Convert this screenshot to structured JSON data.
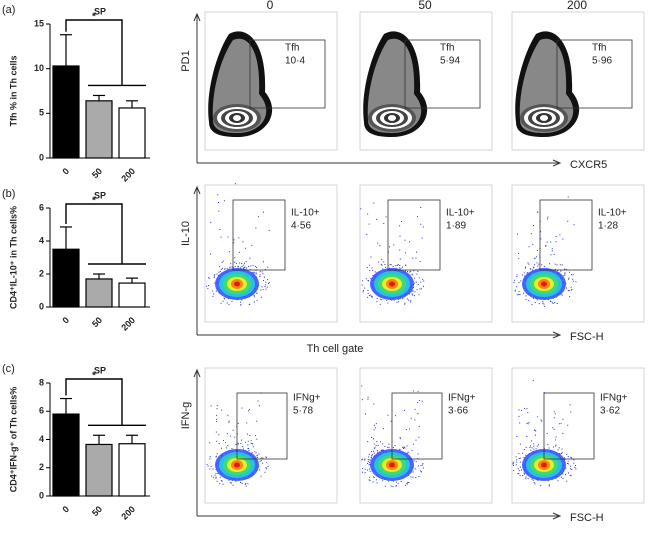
{
  "chart_data": [
    {
      "type": "bar",
      "panel_label": "(a)",
      "title": "SP",
      "ylabel": "Tfh % in Th cells",
      "categories": [
        "0",
        "50",
        "200"
      ],
      "values": [
        10.3,
        6.4,
        5.6
      ],
      "errors": [
        3.5,
        0.6,
        0.8
      ],
      "colors": [
        "#000000",
        "#aaaaaa",
        "#ffffff"
      ],
      "ylim": [
        0,
        15
      ],
      "yticks": [
        0,
        5,
        10,
        15
      ],
      "annotation": "*"
    },
    {
      "type": "bar",
      "panel_label": "(b)",
      "title": "SP",
      "ylabel": "CD4⁺IL-10⁺ in Th cells%",
      "categories": [
        "0",
        "50",
        "200"
      ],
      "values": [
        3.5,
        1.7,
        1.45
      ],
      "errors": [
        1.35,
        0.3,
        0.3
      ],
      "colors": [
        "#000000",
        "#aaaaaa",
        "#ffffff"
      ],
      "ylim": [
        0,
        6
      ],
      "yticks": [
        0,
        2,
        4,
        6
      ],
      "annotation": "*"
    },
    {
      "type": "bar",
      "panel_label": "(c)",
      "title": "SP",
      "ylabel": "CD4⁺IFN-g⁺ of Th cells%",
      "categories": [
        "0",
        "50",
        "200"
      ],
      "values": [
        5.8,
        3.65,
        3.7
      ],
      "errors": [
        1.1,
        0.65,
        0.6
      ],
      "colors": [
        "#000000",
        "#aaaaaa",
        "#ffffff"
      ],
      "ylim": [
        0,
        8
      ],
      "yticks": [
        0,
        2,
        4,
        6,
        8
      ],
      "annotation": "*"
    }
  ],
  "flow": {
    "columns": [
      "0",
      "50",
      "200"
    ],
    "rows": [
      {
        "y_label": "PD1",
        "x_label": "CXCR5",
        "gates": [
          {
            "label": "Tfh",
            "value": "10·4"
          },
          {
            "label": "Tfh",
            "value": "5·94"
          },
          {
            "label": "Tfh",
            "value": "5·96"
          }
        ]
      },
      {
        "y_label": "IL-10",
        "x_label": "FSC-H",
        "x_caption": "Th cell gate",
        "gates": [
          {
            "label": "IL-10+",
            "value": "4·56"
          },
          {
            "label": "IL-10+",
            "value": "1·89"
          },
          {
            "label": "IL-10+",
            "value": "1·28"
          }
        ]
      },
      {
        "y_label": "IFN-g",
        "x_label": "FSC-H",
        "gates": [
          {
            "label": "IFNg+",
            "value": "5·78"
          },
          {
            "label": "IFNg+",
            "value": "3·66"
          },
          {
            "label": "IFNg+",
            "value": "3·62"
          }
        ]
      }
    ]
  }
}
